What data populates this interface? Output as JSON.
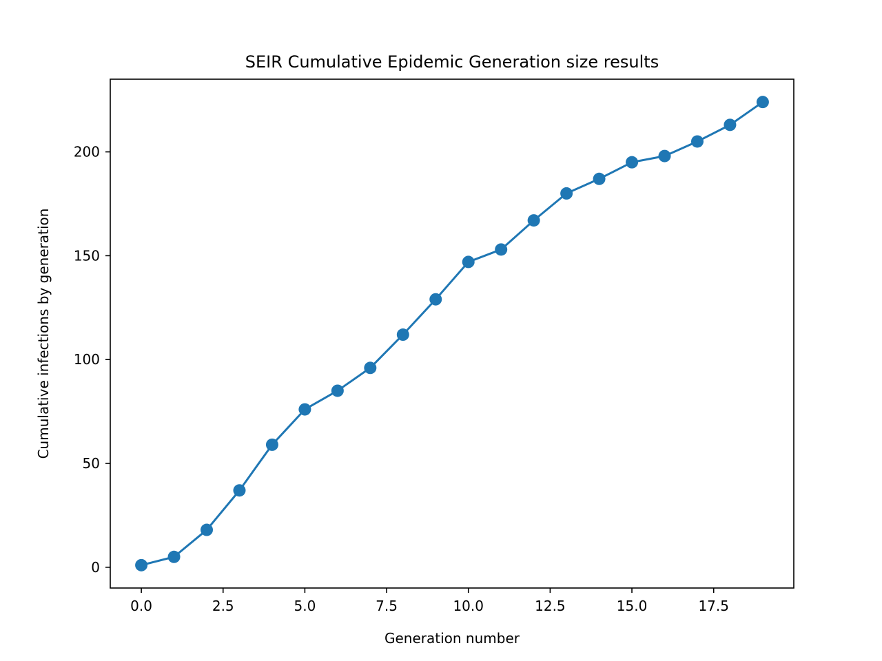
{
  "chart_data": {
    "type": "line",
    "title": "SEIR Cumulative Epidemic Generation size results",
    "xlabel": "Generation number",
    "ylabel": "Cumulative infections by generation",
    "xlim": [
      -0.95,
      19.95
    ],
    "ylim": [
      -10,
      235
    ],
    "x_ticks": [
      0.0,
      2.5,
      5.0,
      7.5,
      10.0,
      12.5,
      15.0,
      17.5
    ],
    "x_tick_labels": [
      "0.0",
      "2.5",
      "5.0",
      "7.5",
      "10.0",
      "12.5",
      "15.0",
      "17.5"
    ],
    "y_ticks": [
      0,
      50,
      100,
      150,
      200
    ],
    "y_tick_labels": [
      "0",
      "50",
      "100",
      "150",
      "200"
    ],
    "grid": false,
    "legend": "none",
    "series": [
      {
        "color": "#1f77b4",
        "marker": "circle",
        "x": [
          0,
          1,
          2,
          3,
          4,
          5,
          6,
          7,
          8,
          9,
          10,
          11,
          12,
          13,
          14,
          15,
          16,
          17,
          18,
          19
        ],
        "values": [
          1,
          5,
          18,
          37,
          59,
          76,
          85,
          96,
          112,
          129,
          147,
          153,
          167,
          180,
          187,
          195,
          198,
          205,
          213,
          224
        ]
      }
    ]
  }
}
